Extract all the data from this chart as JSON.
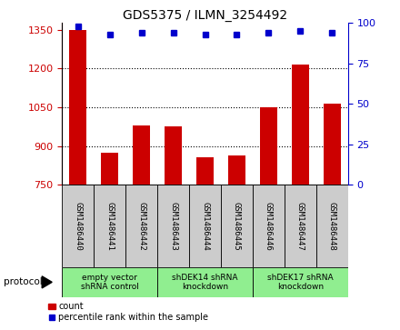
{
  "title": "GDS5375 / ILMN_3254492",
  "samples": [
    "GSM1486440",
    "GSM1486441",
    "GSM1486442",
    "GSM1486443",
    "GSM1486444",
    "GSM1486445",
    "GSM1486446",
    "GSM1486447",
    "GSM1486448"
  ],
  "counts": [
    1350,
    875,
    980,
    975,
    855,
    865,
    1050,
    1215,
    1065
  ],
  "percentiles": [
    98,
    93,
    94,
    94,
    93,
    93,
    94,
    95,
    94
  ],
  "groups": [
    {
      "label": "empty vector\nshRNA control",
      "start": 0,
      "end": 3,
      "color": "#90EE90"
    },
    {
      "label": "shDEK14 shRNA\nknockdown",
      "start": 3,
      "end": 6,
      "color": "#90EE90"
    },
    {
      "label": "shDEK17 shRNA\nknockdown",
      "start": 6,
      "end": 9,
      "color": "#90EE90"
    }
  ],
  "ylim_left": [
    750,
    1375
  ],
  "ylim_right": [
    0,
    100
  ],
  "yticks_left": [
    750,
    900,
    1050,
    1200,
    1350
  ],
  "yticks_right": [
    0,
    25,
    50,
    75,
    100
  ],
  "bar_color": "#CC0000",
  "dot_color": "#0000CC",
  "tick_color_left": "#CC0000",
  "tick_color_right": "#0000CC",
  "grid_color": "#000000",
  "background_color": "#ffffff",
  "sample_box_color": "#CCCCCC"
}
